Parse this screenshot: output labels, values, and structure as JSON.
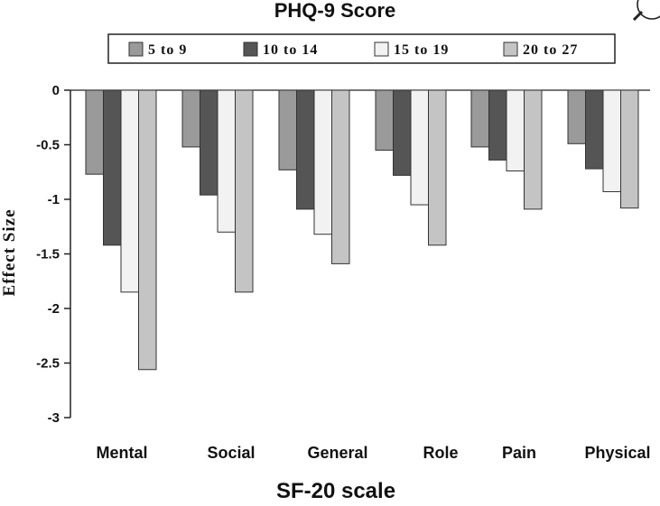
{
  "chart_data": {
    "type": "bar",
    "title": "PHQ-9 Score",
    "xlabel": "SF-20 scale",
    "ylabel": "Effect Size",
    "categories": [
      "Mental",
      "Social",
      "General",
      "Role",
      "Pain",
      "Physical"
    ],
    "series": [
      {
        "name": "5 to 9",
        "color": "#9a9a9a",
        "values": [
          -0.77,
          -0.52,
          -0.73,
          -0.55,
          -0.52,
          -0.49
        ]
      },
      {
        "name": "10 to 14",
        "color": "#555555",
        "values": [
          -1.42,
          -0.96,
          -1.09,
          -0.78,
          -0.64,
          -0.72
        ]
      },
      {
        "name": "15 to 19",
        "color": "#f2f2f2",
        "values": [
          -1.85,
          -1.3,
          -1.32,
          -1.05,
          -0.74,
          -0.93
        ]
      },
      {
        "name": "20 to 27",
        "color": "#c4c4c4",
        "values": [
          -2.56,
          -1.85,
          -1.59,
          -1.42,
          -1.09,
          -1.08
        ]
      }
    ],
    "yticks": [
      0,
      -0.5,
      -1,
      -1.5,
      -2,
      -2.5,
      -3
    ],
    "ytick_labels": [
      "0",
      "-0.5",
      "-1",
      "-1.5",
      "-2",
      "-2.5",
      "-3"
    ],
    "ylim": [
      -3,
      0
    ],
    "grid": false,
    "legend_position": "top"
  },
  "icons": {
    "magnifier": "magnifier-icon"
  }
}
